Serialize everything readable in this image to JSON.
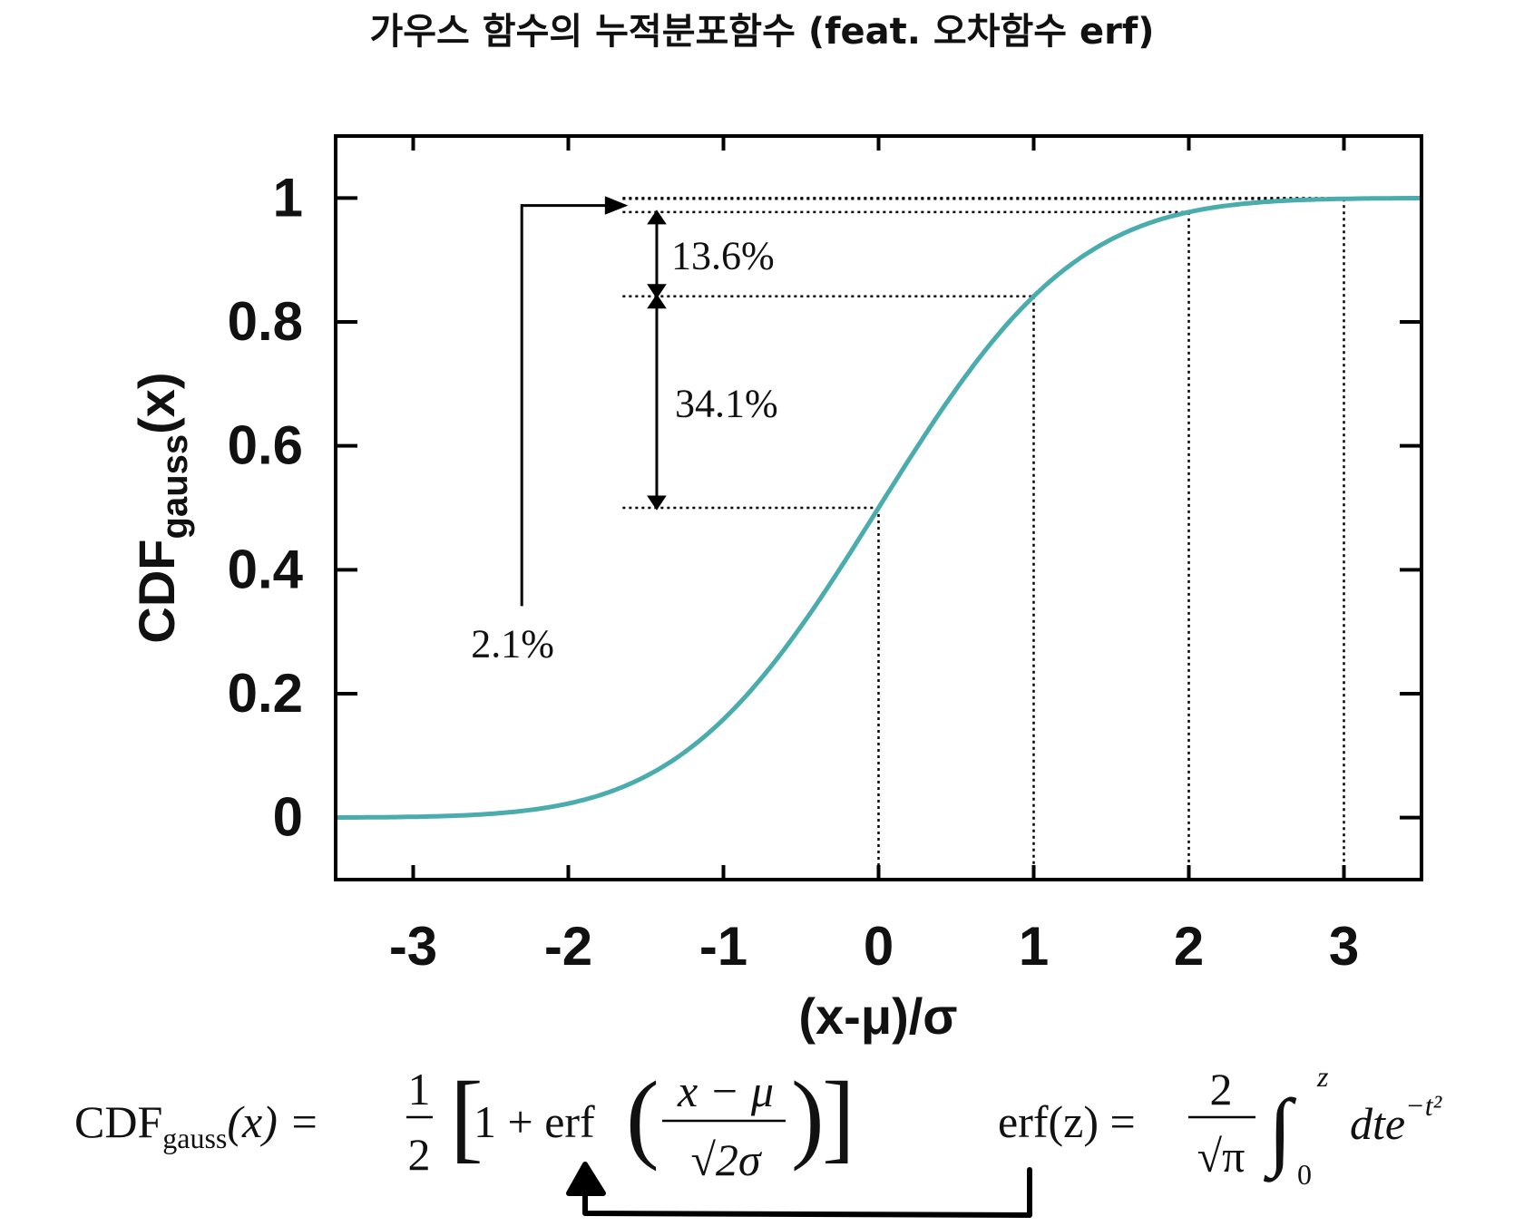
{
  "page": {
    "title": "가우스 함수의 누적분포함수 (feat. 오차함수 erf)"
  },
  "chart_data": {
    "type": "line",
    "title": "",
    "xlabel": "(x-μ)/σ",
    "ylabel_main": "CDF",
    "ylabel_sub": "gauss",
    "ylabel_tail": "(x)",
    "xlim": [
      -3.5,
      3.5
    ],
    "ylim": [
      -0.1,
      1.1
    ],
    "grid": false,
    "x_ticks": [
      {
        "value": -3,
        "label": "-3"
      },
      {
        "value": -2,
        "label": "-2"
      },
      {
        "value": -1,
        "label": "-1"
      },
      {
        "value": 0,
        "label": "0"
      },
      {
        "value": 1,
        "label": "1"
      },
      {
        "value": 2,
        "label": "2"
      },
      {
        "value": 3,
        "label": "3"
      }
    ],
    "y_ticks": [
      {
        "value": 0,
        "label": "0"
      },
      {
        "value": 0.2,
        "label": "0.2"
      },
      {
        "value": 0.4,
        "label": "0.4"
      },
      {
        "value": 0.6,
        "label": "0.6"
      },
      {
        "value": 0.8,
        "label": "0.8"
      },
      {
        "value": 1,
        "label": "1"
      }
    ],
    "series": [
      {
        "color": "#4aacad",
        "x": [
          -3.5,
          -3.0,
          -2.5,
          -2.0,
          -1.5,
          -1.0,
          -0.5,
          0.0,
          0.5,
          1.0,
          1.5,
          2.0,
          2.5,
          3.0,
          3.5
        ],
        "y": [
          0.0002,
          0.0013,
          0.0062,
          0.0228,
          0.0668,
          0.1587,
          0.3085,
          0.5,
          0.6915,
          0.8413,
          0.9332,
          0.9772,
          0.9938,
          0.9987,
          0.9998
        ]
      }
    ],
    "reference_points": [
      {
        "x": 0,
        "y": 0.5
      },
      {
        "x": 1,
        "y": 0.8413
      },
      {
        "x": 2,
        "y": 0.9772
      },
      {
        "x": 3,
        "y": 0.9987
      }
    ],
    "annotations": [
      {
        "text": "34.1%",
        "from": 0.5,
        "to": 0.8413
      },
      {
        "text": "13.6%",
        "from": 0.8413,
        "to": 0.9772
      },
      {
        "text": "2.1%",
        "from": 0.9772,
        "to": 0.9987
      }
    ]
  },
  "formulas": {
    "cdf_lhs": "CDF",
    "cdf_lhs_sub": "gauss",
    "cdf_lhs_arg": "(x) =",
    "half_num": "1",
    "half_den": "2",
    "bracket_left": "[",
    "one_plus": "1 + erf",
    "paren_left": "(",
    "frac_num": "x − μ",
    "frac_den": "√2σ",
    "paren_right": ")",
    "bracket_right": "]",
    "erf_lhs": "erf(z) =",
    "erf_num": "2",
    "erf_den": "√π",
    "integral": "∫",
    "int_upper": "z",
    "int_lower": "0",
    "integrand": "dte",
    "exponent": "−t²"
  }
}
